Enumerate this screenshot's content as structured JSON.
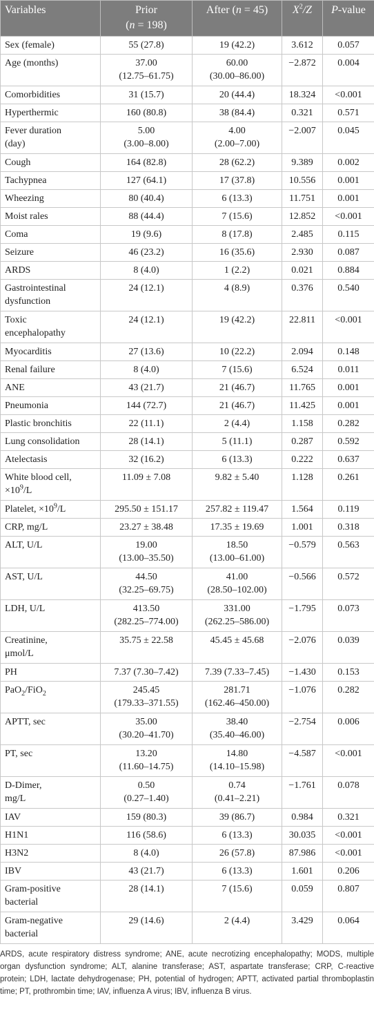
{
  "table": {
    "header": [
      "Variables",
      [
        "Prior\n(",
        "n",
        " = 198)"
      ],
      [
        "After (",
        "n",
        " = 45)"
      ],
      [
        "X",
        "2",
        "/Z"
      ],
      [
        "P",
        "-value"
      ]
    ],
    "rows": [
      [
        "Sex (female)",
        "55 (27.8)",
        "19 (42.2)",
        "3.612",
        "0.057"
      ],
      [
        "Age (months)",
        "37.00\n(12.75–61.75)",
        "60.00\n(30.00–86.00)",
        "−2.872",
        "0.004"
      ],
      [
        "Comorbidities",
        "31 (15.7)",
        "20 (44.4)",
        "18.324",
        "<0.001"
      ],
      [
        "Hyperthermic",
        "160 (80.8)",
        "38 (84.4)",
        "0.321",
        "0.571"
      ],
      [
        "Fever duration\n(day)",
        "5.00\n(3.00–8.00)",
        "4.00\n(2.00–7.00)",
        "−2.007",
        "0.045"
      ],
      [
        "Cough",
        "164 (82.8)",
        "28 (62.2)",
        "9.389",
        "0.002"
      ],
      [
        "Tachypnea",
        "127 (64.1)",
        "17 (37.8)",
        "10.556",
        "0.001"
      ],
      [
        "Wheezing",
        "80 (40.4)",
        "6 (13.3)",
        "11.751",
        "0.001"
      ],
      [
        "Moist rales",
        "88 (44.4)",
        "7 (15.6)",
        "12.852",
        "<0.001"
      ],
      [
        "Coma",
        "19 (9.6)",
        "8 (17.8)",
        "2.485",
        "0.115"
      ],
      [
        "Seizure",
        "46 (23.2)",
        "16 (35.6)",
        "2.930",
        "0.087"
      ],
      [
        "ARDS",
        "8 (4.0)",
        "1 (2.2)",
        "0.021",
        "0.884"
      ],
      [
        "Gastrointestinal\ndysfunction",
        "24 (12.1)",
        "4 (8.9)",
        "0.376",
        "0.540"
      ],
      [
        "Toxic\nencephalopathy",
        "24 (12.1)",
        "19 (42.2)",
        "22.811",
        "<0.001"
      ],
      [
        "Myocarditis",
        "27 (13.6)",
        "10 (22.2)",
        "2.094",
        "0.148"
      ],
      [
        "Renal failure",
        "8 (4.0)",
        "7 (15.6)",
        "6.524",
        "0.011"
      ],
      [
        "ANE",
        "43 (21.7)",
        "21 (46.7)",
        "11.765",
        "0.001"
      ],
      [
        "Pneumonia",
        "144 (72.7)",
        "21 (46.7)",
        "11.425",
        "0.001"
      ],
      [
        "Plastic bronchitis",
        "22 (11.1)",
        "2 (4.4)",
        "1.158",
        "0.282"
      ],
      [
        "Lung consolidation",
        "28 (14.1)",
        "5 (11.1)",
        "0.287",
        "0.592"
      ],
      [
        "Atelectasis",
        "32 (16.2)",
        "6 (13.3)",
        "0.222",
        "0.637"
      ],
      [
        [
          "White blood cell,\n×10",
          "9",
          "/L"
        ],
        "11.09 ± 7.08",
        "9.82 ± 5.40",
        "1.128",
        "0.261"
      ],
      [
        [
          "Platelet, ×10",
          "9",
          "/L"
        ],
        "295.50 ± 151.17",
        "257.82 ± 119.47",
        "1.564",
        "0.119"
      ],
      [
        "CRP, mg/L",
        "23.27 ± 38.48",
        "17.35 ± 19.69",
        "1.001",
        "0.318"
      ],
      [
        "ALT, U/L",
        "19.00\n(13.00–35.50)",
        "18.50\n(13.00–61.00)",
        "−0.579",
        "0.563"
      ],
      [
        "AST, U/L",
        "44.50\n(32.25–69.75)",
        "41.00\n(28.50–102.00)",
        "−0.566",
        "0.572"
      ],
      [
        "LDH, U/L",
        "413.50\n(282.25–774.00)",
        "331.00\n(262.25–586.00)",
        "−1.795",
        "0.073"
      ],
      [
        "Creatinine,\nμmol/L",
        "35.75 ± 22.58",
        "45.45 ± 45.68",
        "−2.076",
        "0.039"
      ],
      [
        "PH",
        "7.37 (7.30–7.42)",
        "7.39 (7.33–7.45)",
        "−1.430",
        "0.153"
      ],
      [
        [
          "PaO",
          "2",
          "/FiO",
          "2"
        ],
        "245.45\n(179.33–371.55)",
        "281.71\n(162.46–450.00)",
        "−1.076",
        "0.282"
      ],
      [
        "APTT, sec",
        "35.00\n(30.20–41.70)",
        "38.40\n(35.40–46.00)",
        "−2.754",
        "0.006"
      ],
      [
        "PT, sec",
        "13.20\n(11.60–14.75)",
        "14.80\n(14.10–15.98)",
        "−4.587",
        "<0.001"
      ],
      [
        "D-Dimer,\nmg/L",
        "0.50\n(0.27–1.40)",
        "0.74\n(0.41–2.21)",
        "−1.761",
        "0.078"
      ],
      [
        "IAV",
        "159 (80.3)",
        "39 (86.7)",
        "0.984",
        "0.321"
      ],
      [
        "H1N1",
        "116 (58.6)",
        "6 (13.3)",
        "30.035",
        "<0.001"
      ],
      [
        "H3N2",
        "8 (4.0)",
        "26 (57.8)",
        "87.986",
        "<0.001"
      ],
      [
        "IBV",
        "43 (21.7)",
        "6 (13.3)",
        "1.601",
        "0.206"
      ],
      [
        "Gram-positive\nbacterial",
        "28 (14.1)",
        "7 (15.6)",
        "0.059",
        "0.807"
      ],
      [
        "Gram-negative\nbacterial",
        "29 (14.6)",
        "2 (4.4)",
        "3.429",
        "0.064"
      ]
    ],
    "footnote": "ARDS, acute respiratory distress syndrome; ANE, acute necrotizing encephalopathy; MODS, multiple organ dysfunction syndrome; ALT, alanine transferase; AST, aspartate transferase; CRP, C-reactive protein; LDH, lactate dehydrogenase; PH, potential of hydrogen; APTT, activated partial thromboplastin time; PT, prothrombin time; IAV, influenza A virus; IBV, influenza B virus."
  }
}
